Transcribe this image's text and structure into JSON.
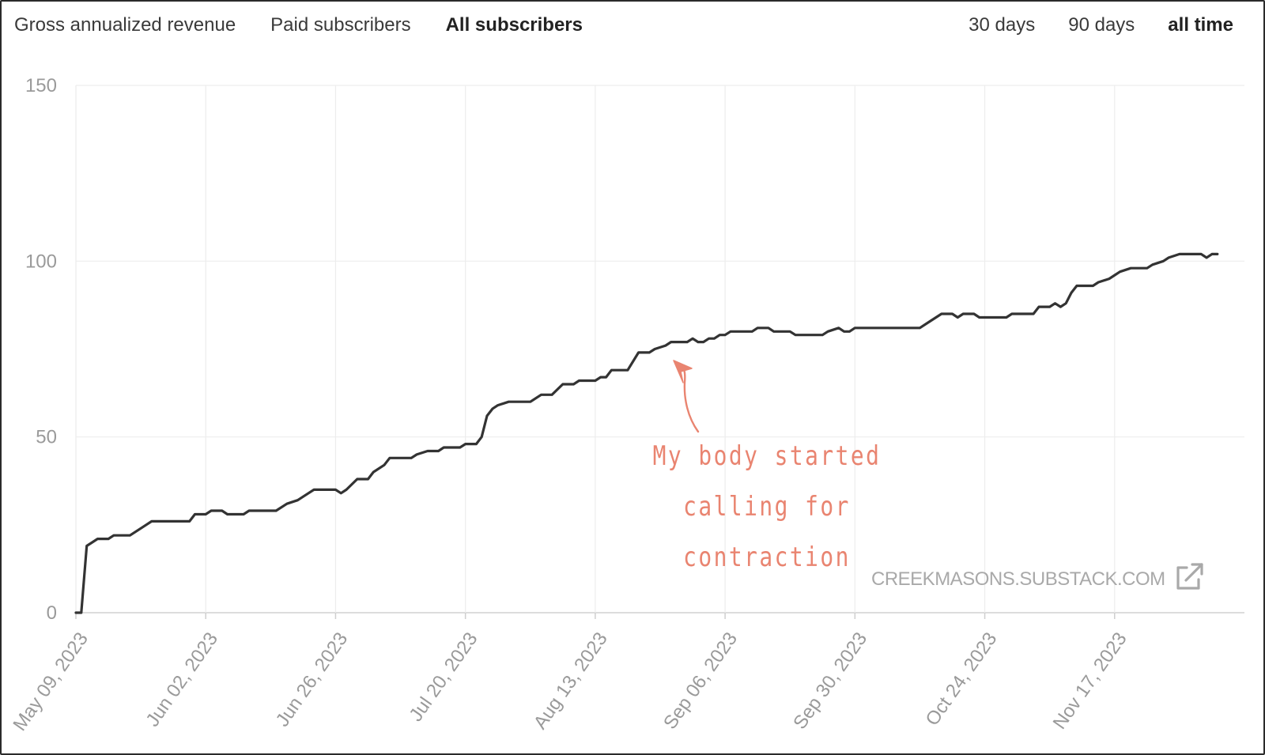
{
  "metric_tabs": [
    {
      "label": "Gross annualized revenue",
      "active": false
    },
    {
      "label": "Paid subscribers",
      "active": false
    },
    {
      "label": "All subscribers",
      "active": true
    }
  ],
  "range_tabs": [
    {
      "label": "30 days",
      "active": false
    },
    {
      "label": "90 days",
      "active": false
    },
    {
      "label": "all time",
      "active": true
    }
  ],
  "annotation": {
    "lines": [
      "My body started",
      "calling for",
      "contraction"
    ],
    "color": "#e98470"
  },
  "watermark": {
    "text": "CREEKMASONS.SUBSTACK.COM",
    "icon": "external-link-icon"
  },
  "colors": {
    "line": "#333333",
    "grid": "#ededed",
    "axis_text": "#9a9a9a",
    "annotation": "#e98470"
  },
  "chart_data": {
    "type": "line",
    "title": "",
    "xlabel": "",
    "ylabel": "",
    "ylim": [
      0,
      150
    ],
    "y_ticks": [
      0,
      50,
      100,
      150
    ],
    "x_range": [
      "2023-05-09",
      "2023-12-11"
    ],
    "x_ticks": [
      {
        "date": "2023-05-09",
        "label": "May 09, 2023"
      },
      {
        "date": "2023-06-02",
        "label": "Jun 02, 2023"
      },
      {
        "date": "2023-06-26",
        "label": "Jun 26, 2023"
      },
      {
        "date": "2023-07-20",
        "label": "Jul 20, 2023"
      },
      {
        "date": "2023-08-13",
        "label": "Aug 13, 2023"
      },
      {
        "date": "2023-09-06",
        "label": "Sep 06, 2023"
      },
      {
        "date": "2023-09-30",
        "label": "Sep 30, 2023"
      },
      {
        "date": "2023-10-24",
        "label": "Oct 24, 2023"
      },
      {
        "date": "2023-11-17",
        "label": "Nov 17, 2023"
      }
    ],
    "grid": true,
    "series": [
      {
        "points": [
          [
            "2023-05-09",
            0
          ],
          [
            "2023-05-10",
            0
          ],
          [
            "2023-05-11",
            19
          ],
          [
            "2023-05-12",
            20
          ],
          [
            "2023-05-13",
            21
          ],
          [
            "2023-05-15",
            21
          ],
          [
            "2023-05-16",
            22
          ],
          [
            "2023-05-19",
            22
          ],
          [
            "2023-05-21",
            24
          ],
          [
            "2023-05-22",
            25
          ],
          [
            "2023-05-23",
            26
          ],
          [
            "2023-05-26",
            26
          ],
          [
            "2023-05-30",
            26
          ],
          [
            "2023-05-31",
            28
          ],
          [
            "2023-06-02",
            28
          ],
          [
            "2023-06-03",
            29
          ],
          [
            "2023-06-05",
            29
          ],
          [
            "2023-06-06",
            28
          ],
          [
            "2023-06-09",
            28
          ],
          [
            "2023-06-10",
            29
          ],
          [
            "2023-06-15",
            29
          ],
          [
            "2023-06-17",
            31
          ],
          [
            "2023-06-19",
            32
          ],
          [
            "2023-06-21",
            34
          ],
          [
            "2023-06-22",
            35
          ],
          [
            "2023-06-26",
            35
          ],
          [
            "2023-06-27",
            34
          ],
          [
            "2023-06-28",
            35
          ],
          [
            "2023-06-30",
            38
          ],
          [
            "2023-07-02",
            38
          ],
          [
            "2023-07-03",
            40
          ],
          [
            "2023-07-05",
            42
          ],
          [
            "2023-07-06",
            44
          ],
          [
            "2023-07-10",
            44
          ],
          [
            "2023-07-11",
            45
          ],
          [
            "2023-07-13",
            46
          ],
          [
            "2023-07-15",
            46
          ],
          [
            "2023-07-16",
            47
          ],
          [
            "2023-07-19",
            47
          ],
          [
            "2023-07-20",
            48
          ],
          [
            "2023-07-22",
            48
          ],
          [
            "2023-07-23",
            50
          ],
          [
            "2023-07-24",
            56
          ],
          [
            "2023-07-25",
            58
          ],
          [
            "2023-07-26",
            59
          ],
          [
            "2023-07-28",
            60
          ],
          [
            "2023-08-01",
            60
          ],
          [
            "2023-08-03",
            62
          ],
          [
            "2023-08-05",
            62
          ],
          [
            "2023-08-07",
            65
          ],
          [
            "2023-08-09",
            65
          ],
          [
            "2023-08-10",
            66
          ],
          [
            "2023-08-13",
            66
          ],
          [
            "2023-08-14",
            67
          ],
          [
            "2023-08-15",
            67
          ],
          [
            "2023-08-16",
            69
          ],
          [
            "2023-08-19",
            69
          ],
          [
            "2023-08-21",
            74
          ],
          [
            "2023-08-23",
            74
          ],
          [
            "2023-08-24",
            75
          ],
          [
            "2023-08-26",
            76
          ],
          [
            "2023-08-27",
            77
          ],
          [
            "2023-08-30",
            77
          ],
          [
            "2023-08-31",
            78
          ],
          [
            "2023-09-01",
            77
          ],
          [
            "2023-09-02",
            77
          ],
          [
            "2023-09-03",
            78
          ],
          [
            "2023-09-04",
            78
          ],
          [
            "2023-09-05",
            79
          ],
          [
            "2023-09-06",
            79
          ],
          [
            "2023-09-07",
            80
          ],
          [
            "2023-09-11",
            80
          ],
          [
            "2023-09-12",
            81
          ],
          [
            "2023-09-14",
            81
          ],
          [
            "2023-09-15",
            80
          ],
          [
            "2023-09-18",
            80
          ],
          [
            "2023-09-19",
            79
          ],
          [
            "2023-09-24",
            79
          ],
          [
            "2023-09-25",
            80
          ],
          [
            "2023-09-27",
            81
          ],
          [
            "2023-09-28",
            80
          ],
          [
            "2023-09-29",
            80
          ],
          [
            "2023-09-30",
            81
          ],
          [
            "2023-10-02",
            81
          ],
          [
            "2023-10-06",
            81
          ],
          [
            "2023-10-12",
            81
          ],
          [
            "2023-10-14",
            83
          ],
          [
            "2023-10-16",
            85
          ],
          [
            "2023-10-18",
            85
          ],
          [
            "2023-10-19",
            84
          ],
          [
            "2023-10-20",
            85
          ],
          [
            "2023-10-22",
            85
          ],
          [
            "2023-10-23",
            84
          ],
          [
            "2023-10-28",
            84
          ],
          [
            "2023-10-29",
            85
          ],
          [
            "2023-11-02",
            85
          ],
          [
            "2023-11-03",
            87
          ],
          [
            "2023-11-05",
            87
          ],
          [
            "2023-11-06",
            88
          ],
          [
            "2023-11-07",
            87
          ],
          [
            "2023-11-08",
            88
          ],
          [
            "2023-11-09",
            91
          ],
          [
            "2023-11-10",
            93
          ],
          [
            "2023-11-13",
            93
          ],
          [
            "2023-11-14",
            94
          ],
          [
            "2023-11-16",
            95
          ],
          [
            "2023-11-17",
            96
          ],
          [
            "2023-11-18",
            97
          ],
          [
            "2023-11-20",
            98
          ],
          [
            "2023-11-23",
            98
          ],
          [
            "2023-11-24",
            99
          ],
          [
            "2023-11-26",
            100
          ],
          [
            "2023-11-27",
            101
          ],
          [
            "2023-11-29",
            102
          ],
          [
            "2023-12-03",
            102
          ],
          [
            "2023-12-04",
            101
          ],
          [
            "2023-12-05",
            102
          ],
          [
            "2023-12-06",
            102
          ]
        ]
      }
    ]
  }
}
